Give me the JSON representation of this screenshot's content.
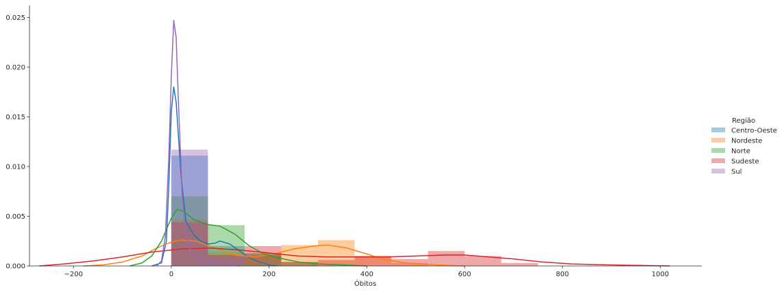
{
  "chart_data": {
    "type": "histogram-kde",
    "xlabel": "Óbitos",
    "ylabel": "",
    "title": "",
    "xlim": [
      -290,
      1085
    ],
    "ylim": [
      0,
      0.0262
    ],
    "xticks": [
      -200,
      0,
      200,
      400,
      600,
      800,
      1000
    ],
    "yticks": [
      0.0,
      0.005,
      0.01,
      0.015,
      0.02,
      0.025
    ],
    "xtick_labels": [
      "−200",
      "0",
      "200",
      "400",
      "600",
      "800",
      "1000"
    ],
    "ytick_labels": [
      "0.000",
      "0.005",
      "0.010",
      "0.015",
      "0.020",
      "0.025"
    ],
    "grid": false,
    "legend": {
      "title": "Região",
      "placement": "right",
      "entries": [
        "Centro-Oeste",
        "Nordeste",
        "Norte",
        "Sudeste",
        "Sul"
      ]
    },
    "series": [
      {
        "name": "Centro-Oeste",
        "color": "#1f77b4",
        "bins": [
          [
            0,
            75,
            0.0111
          ],
          [
            75,
            150,
            0.002
          ],
          [
            150,
            225,
            0.0012
          ]
        ],
        "kde": [
          [
            -40,
            0
          ],
          [
            -20,
            0.0003
          ],
          [
            -10,
            0.0025
          ],
          [
            -5,
            0.008
          ],
          [
            0,
            0.0155
          ],
          [
            5,
            0.018
          ],
          [
            10,
            0.0165
          ],
          [
            20,
            0.009
          ],
          [
            30,
            0.0045
          ],
          [
            45,
            0.0032
          ],
          [
            60,
            0.0025
          ],
          [
            75,
            0.0022
          ],
          [
            90,
            0.0023
          ],
          [
            100,
            0.0025
          ],
          [
            120,
            0.0022
          ],
          [
            140,
            0.0015
          ],
          [
            160,
            0.0008
          ],
          [
            180,
            0.0004
          ],
          [
            200,
            0.0001
          ],
          [
            215,
            0
          ]
        ]
      },
      {
        "name": "Nordeste",
        "color": "#ff7f0e",
        "bins": [
          [
            0,
            75,
            0.0047
          ],
          [
            75,
            150,
            0.0014
          ],
          [
            150,
            225,
            0.001
          ],
          [
            225,
            300,
            0.0021
          ],
          [
            300,
            375,
            0.0026
          ],
          [
            375,
            450,
            0.001
          ],
          [
            450,
            525,
            0.0003
          ]
        ],
        "kde": [
          [
            -180,
            0
          ],
          [
            -140,
            0.0001
          ],
          [
            -100,
            0.0004
          ],
          [
            -60,
            0.001
          ],
          [
            -30,
            0.0018
          ],
          [
            0,
            0.0024
          ],
          [
            20,
            0.0026
          ],
          [
            50,
            0.0025
          ],
          [
            90,
            0.0018
          ],
          [
            130,
            0.0011
          ],
          [
            170,
            0.0009
          ],
          [
            210,
            0.0012
          ],
          [
            250,
            0.0017
          ],
          [
            290,
            0.002
          ],
          [
            320,
            0.0021
          ],
          [
            360,
            0.0018
          ],
          [
            400,
            0.0012
          ],
          [
            440,
            0.0006
          ],
          [
            480,
            0.0003
          ],
          [
            540,
            0.0001
          ],
          [
            600,
            0
          ]
        ]
      },
      {
        "name": "Norte",
        "color": "#2ca02c",
        "bins": [
          [
            0,
            75,
            0.007
          ],
          [
            75,
            150,
            0.0041
          ],
          [
            150,
            225,
            0.0013
          ],
          [
            225,
            300,
            0.0004
          ]
        ],
        "kde": [
          [
            -85,
            0
          ],
          [
            -60,
            0.0003
          ],
          [
            -40,
            0.001
          ],
          [
            -20,
            0.0025
          ],
          [
            0,
            0.0048
          ],
          [
            12,
            0.0057
          ],
          [
            25,
            0.0055
          ],
          [
            45,
            0.0047
          ],
          [
            70,
            0.0042
          ],
          [
            100,
            0.004
          ],
          [
            130,
            0.0032
          ],
          [
            160,
            0.002
          ],
          [
            190,
            0.0012
          ],
          [
            220,
            0.0008
          ],
          [
            260,
            0.0004
          ],
          [
            300,
            0.0002
          ],
          [
            350,
            0.0001
          ],
          [
            400,
            0
          ]
        ]
      },
      {
        "name": "Sudeste",
        "color": "#d62728",
        "bins": [
          [
            0,
            75,
            0.0044
          ],
          [
            75,
            150,
            0.0011
          ],
          [
            150,
            225,
            0.002
          ],
          [
            225,
            300,
            0.0004
          ],
          [
            300,
            375,
            0.0006
          ],
          [
            375,
            450,
            0.001
          ],
          [
            450,
            525,
            0.0007
          ],
          [
            525,
            600,
            0.0015
          ],
          [
            600,
            675,
            0.001
          ],
          [
            675,
            750,
            0.0003
          ]
        ],
        "kde": [
          [
            -270,
            0
          ],
          [
            -220,
            0.0002
          ],
          [
            -160,
            0.0005
          ],
          [
            -100,
            0.0009
          ],
          [
            -40,
            0.0014
          ],
          [
            20,
            0.0017
          ],
          [
            80,
            0.0018
          ],
          [
            140,
            0.0016
          ],
          [
            200,
            0.0013
          ],
          [
            260,
            0.001
          ],
          [
            320,
            0.0009
          ],
          [
            380,
            0.0009
          ],
          [
            440,
            0.0009
          ],
          [
            500,
            0.001
          ],
          [
            560,
            0.0011
          ],
          [
            600,
            0.0011
          ],
          [
            650,
            0.0009
          ],
          [
            700,
            0.0007
          ],
          [
            760,
            0.0004
          ],
          [
            820,
            0.0002
          ],
          [
            900,
            0.0001
          ],
          [
            1020,
            0
          ]
        ]
      },
      {
        "name": "Sul",
        "color": "#9467bd",
        "bins": [
          [
            0,
            75,
            0.0117
          ],
          [
            75,
            150,
            0.001
          ]
        ],
        "kde": [
          [
            -30,
            0
          ],
          [
            -20,
            0.0005
          ],
          [
            -12,
            0.003
          ],
          [
            -5,
            0.011
          ],
          [
            0,
            0.019
          ],
          [
            5,
            0.0247
          ],
          [
            10,
            0.023
          ],
          [
            15,
            0.016
          ],
          [
            22,
            0.0075
          ],
          [
            30,
            0.003
          ],
          [
            40,
            0.0015
          ],
          [
            55,
            0.0008
          ],
          [
            75,
            0.0004
          ],
          [
            100,
            0.0002
          ],
          [
            140,
            0
          ]
        ]
      }
    ]
  }
}
